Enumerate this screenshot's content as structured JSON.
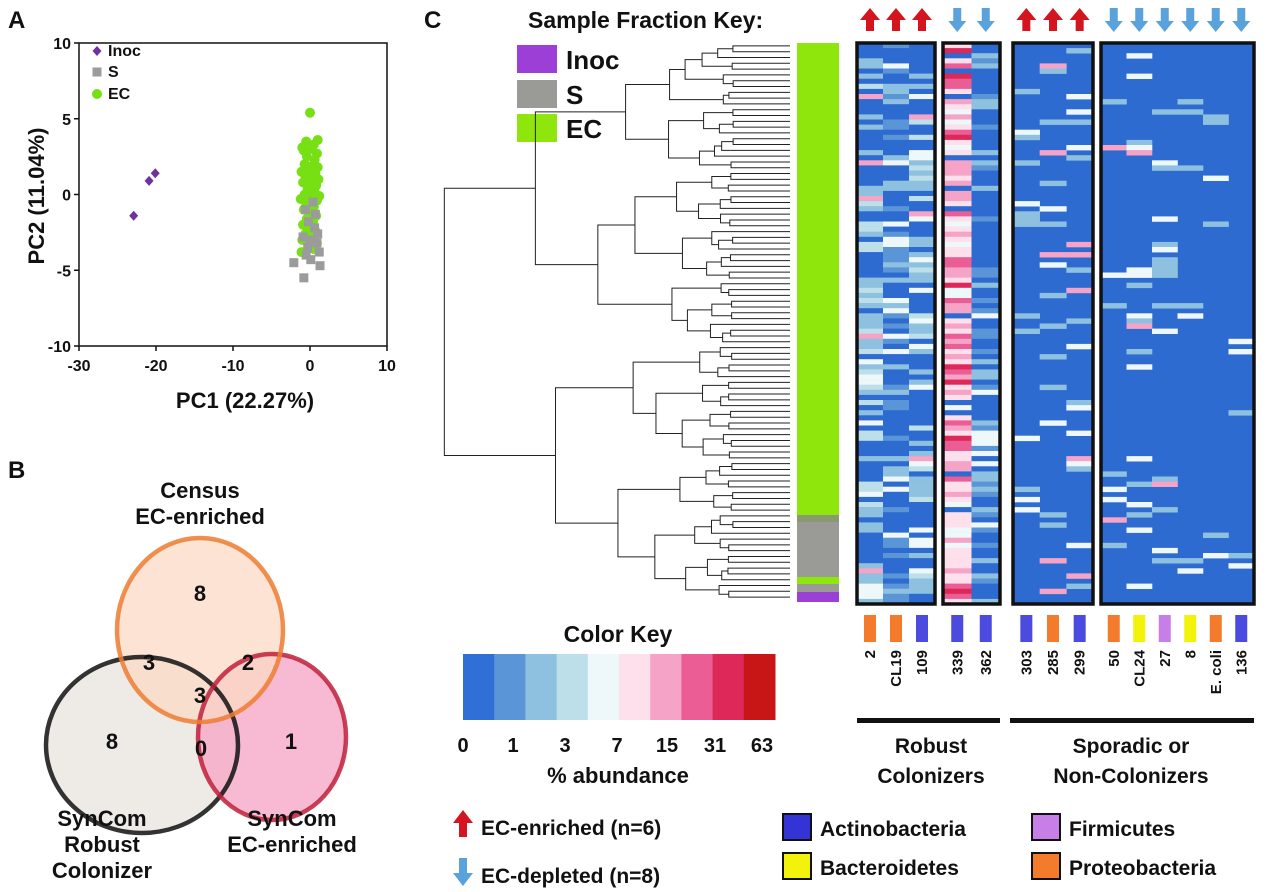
{
  "panel_a": {
    "letter": "A",
    "chart_data": {
      "type": "scatter",
      "xlabel": "PC1 (22.27%)",
      "ylabel": "PC2 (11.04%)",
      "xlim": [
        -30,
        10
      ],
      "ylim": [
        -10,
        10
      ],
      "xticks": [
        "-30",
        "-20",
        "-10",
        "0",
        "10"
      ],
      "yticks": [
        "10",
        "5",
        "0",
        "-5",
        "-10"
      ],
      "legend_placement": "top-left",
      "series": [
        {
          "name": "Inoc",
          "color": "#7030a0",
          "marker": "diamond",
          "points": [
            [
              -22.9,
              -1.4
            ],
            [
              -20.9,
              0.9
            ],
            [
              -20.1,
              1.4
            ]
          ]
        },
        {
          "name": "S",
          "color": "#9b9b9b",
          "marker": "square",
          "points": [
            [
              -2.1,
              -4.5
            ],
            [
              -0.8,
              -5.5
            ],
            [
              -0.6,
              -1.0
            ],
            [
              -0.3,
              -3.5
            ],
            [
              0.1,
              -4.3
            ],
            [
              0.6,
              -2.2
            ],
            [
              0.9,
              -3.2
            ],
            [
              1.3,
              -4.7
            ],
            [
              -0.9,
              -2.8
            ],
            [
              0.4,
              -0.5
            ],
            [
              -0.2,
              -1.8
            ],
            [
              1.0,
              -2.6
            ],
            [
              -0.5,
              -4.0
            ],
            [
              0.7,
              -1.3
            ],
            [
              1.2,
              -3.8
            ],
            [
              0.0,
              -3.0
            ]
          ]
        },
        {
          "name": "EC",
          "color": "#77e014",
          "marker": "circle",
          "points": [
            [
              0.0,
              5.4
            ],
            [
              -0.5,
              3.5
            ],
            [
              0.5,
              3.3
            ],
            [
              -0.8,
              2.9
            ],
            [
              0.2,
              3.0
            ],
            [
              0.9,
              2.7
            ],
            [
              -0.4,
              2.5
            ],
            [
              0.6,
              2.3
            ],
            [
              -0.7,
              2.0
            ],
            [
              0.3,
              1.9
            ],
            [
              1.0,
              1.8
            ],
            [
              -0.2,
              1.6
            ],
            [
              0.7,
              1.4
            ],
            [
              -0.6,
              1.2
            ],
            [
              0.4,
              1.1
            ],
            [
              -0.9,
              0.8
            ],
            [
              0.1,
              0.7
            ],
            [
              0.8,
              0.6
            ],
            [
              -0.3,
              0.4
            ],
            [
              0.6,
              0.2
            ],
            [
              -0.7,
              0.0
            ],
            [
              0.2,
              -0.2
            ],
            [
              0.9,
              -0.4
            ],
            [
              -0.5,
              -0.6
            ],
            [
              0.5,
              -0.8
            ],
            [
              -0.8,
              -1.0
            ],
            [
              0.1,
              -1.2
            ],
            [
              0.8,
              -1.4
            ],
            [
              -0.4,
              -1.6
            ],
            [
              0.4,
              -1.8
            ],
            [
              -0.9,
              -2.0
            ],
            [
              0.0,
              -2.2
            ],
            [
              0.7,
              -2.4
            ],
            [
              -0.6,
              -2.6
            ],
            [
              0.3,
              -2.8
            ],
            [
              -1.0,
              -3.0
            ],
            [
              0.9,
              -3.2
            ],
            [
              -0.2,
              -3.4
            ],
            [
              0.5,
              -3.6
            ],
            [
              -1.1,
              -3.8
            ],
            [
              1.0,
              3.6
            ],
            [
              -1.0,
              3.1
            ],
            [
              1.1,
              1.0
            ],
            [
              -1.1,
              1.5
            ],
            [
              1.2,
              -0.1
            ],
            [
              -1.2,
              -0.3
            ]
          ]
        }
      ]
    }
  },
  "panel_b": {
    "letter": "B",
    "circles": [
      {
        "label_lines": [
          "Census",
          "EC-enriched"
        ],
        "stroke": "#ed7d31",
        "fill": "#fbd9c4"
      },
      {
        "label_lines": [
          "SynCom",
          "Robust",
          "Colonizer"
        ],
        "stroke": "#111111",
        "fill": "#e8e3de"
      },
      {
        "label_lines": [
          "SynCom",
          "EC-enriched"
        ],
        "stroke": "#c0203a",
        "fill": "#f6a3c4"
      }
    ],
    "region_values": {
      "census_only": "8",
      "census_robust": "3",
      "census_syncom": "2",
      "center": "3",
      "robust_only": "8",
      "robust_syncom": "0",
      "syncom_only": "1"
    }
  },
  "panel_c": {
    "letter": "C",
    "sample_key_title": "Sample Fraction Key:",
    "sample_key": [
      {
        "label": "Inoc",
        "color": "#9b3fd6"
      },
      {
        "label": "S",
        "color": "#9a9a96"
      },
      {
        "label": "EC",
        "color": "#8fe60c"
      }
    ],
    "color_key": {
      "title": "Color Key",
      "xlabel": "% abundance",
      "tick_labels": [
        "0",
        "1",
        "3",
        "7",
        "15",
        "31",
        "63"
      ],
      "colors": [
        "#2f6fd6",
        "#5a95d8",
        "#8ec0e0",
        "#bcdfea",
        "#eef7fa",
        "#fde0ec",
        "#f5a3c6",
        "#ea5d95",
        "#dd2859",
        "#c81515"
      ]
    },
    "heat_base": "#2e6bd0",
    "groups": [
      {
        "label_lines": [
          "Robust",
          "Colonizers"
        ]
      },
      {
        "label_lines": [
          "Sporadic or",
          "Non-Colonizers"
        ]
      }
    ],
    "blocks": [
      {
        "columns": [
          {
            "label": "2",
            "arrow": "up",
            "phylum_color": "#f47b2b",
            "mode": "light"
          },
          {
            "label": "CL19",
            "arrow": "up",
            "phylum_color": "#f47b2b",
            "mode": "medium"
          },
          {
            "label": "109",
            "arrow": "up",
            "phylum_color": "#4b4be0",
            "mode": "light"
          }
        ]
      },
      {
        "columns": [
          {
            "label": "339",
            "arrow": "down",
            "phylum_color": "#4b4be0",
            "mode": "pink"
          },
          {
            "label": "362",
            "arrow": "down",
            "phylum_color": "#4b4be0",
            "mode": "medium"
          }
        ]
      },
      {
        "columns": [
          {
            "label": "303",
            "arrow": "up",
            "phylum_color": "#4b4be0",
            "mode": "sparse"
          },
          {
            "label": "285",
            "arrow": "up",
            "phylum_color": "#f47b2b",
            "mode": "sparse"
          },
          {
            "label": "299",
            "arrow": "up",
            "phylum_color": "#4b4be0",
            "mode": "sparse"
          }
        ]
      },
      {
        "columns": [
          {
            "label": "50",
            "arrow": "down",
            "phylum_color": "#f47b2b",
            "mode": "sparse"
          },
          {
            "label": "CL24",
            "arrow": "down",
            "phylum_color": "#f2f20a",
            "mode": "sparse"
          },
          {
            "label": "27",
            "arrow": "down",
            "phylum_color": "#c77ee6",
            "mode": "sparse"
          },
          {
            "label": "8",
            "arrow": "down",
            "phylum_color": "#f2f20a",
            "mode": "vsparse"
          },
          {
            "label": "E. coli",
            "arrow": "down",
            "phylum_color": "#f47b2b",
            "mode": "vsparse"
          },
          {
            "label": "136",
            "arrow": "down",
            "phylum_color": "#4b4be0",
            "mode": "vsparse"
          }
        ]
      }
    ],
    "arrow_colors": {
      "up": "#d4141e",
      "down": "#5aa2dc"
    },
    "arrow_legend": [
      {
        "dir": "up",
        "label": "EC-enriched (n=6)"
      },
      {
        "dir": "down",
        "label": "EC-depleted (n=8)"
      }
    ],
    "phylum_legend": [
      {
        "label": "Actinobacteria",
        "color": "#3333d6"
      },
      {
        "label": "Firmicutes",
        "color": "#c77ee6"
      },
      {
        "label": "Bacteroidetes",
        "color": "#f2f20a"
      },
      {
        "label": "Proteobacteria",
        "color": "#f47b2b"
      }
    ]
  }
}
